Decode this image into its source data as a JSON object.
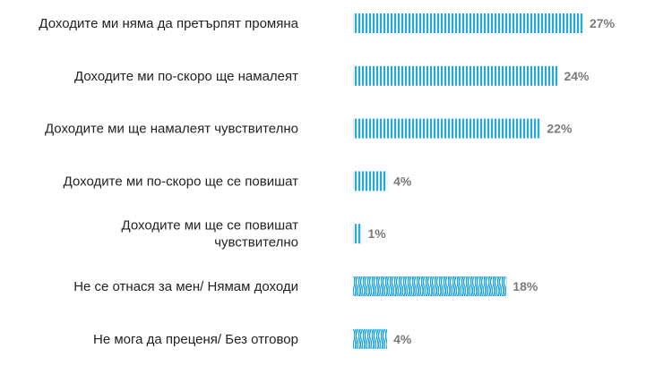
{
  "chart_data": {
    "type": "bar",
    "orientation": "horizontal",
    "title": "",
    "xlabel": "",
    "ylabel": "",
    "xlim": [
      0,
      27
    ],
    "grid": false,
    "categories": [
      [
        "Доходите ми няма да претърпят промяна"
      ],
      [
        "Доходите ми по-скоро ще намалеят"
      ],
      [
        "Доходите ми ще намалеят чувствително"
      ],
      [
        "Доходите ми по-скоро ще се повишат"
      ],
      [
        "Доходите ми ще се повишат",
        "чувствително"
      ],
      [
        "Не се отнася за мен/ Нямам доходи"
      ],
      [
        "Не мога да преценя/ Без отговор"
      ]
    ],
    "values": [
      27,
      24,
      22,
      4,
      1,
      18,
      4
    ],
    "value_labels": [
      "27%",
      "24%",
      "22%",
      "4%",
      "1%",
      "18%",
      "4%"
    ],
    "bar_patterns": [
      "vertical",
      "vertical",
      "vertical",
      "vertical",
      "vertical",
      "wavy",
      "wavy"
    ],
    "colors": {
      "bar": "#29a8dc",
      "value_text": "#7a7a7a",
      "label_text": "#222222"
    }
  }
}
